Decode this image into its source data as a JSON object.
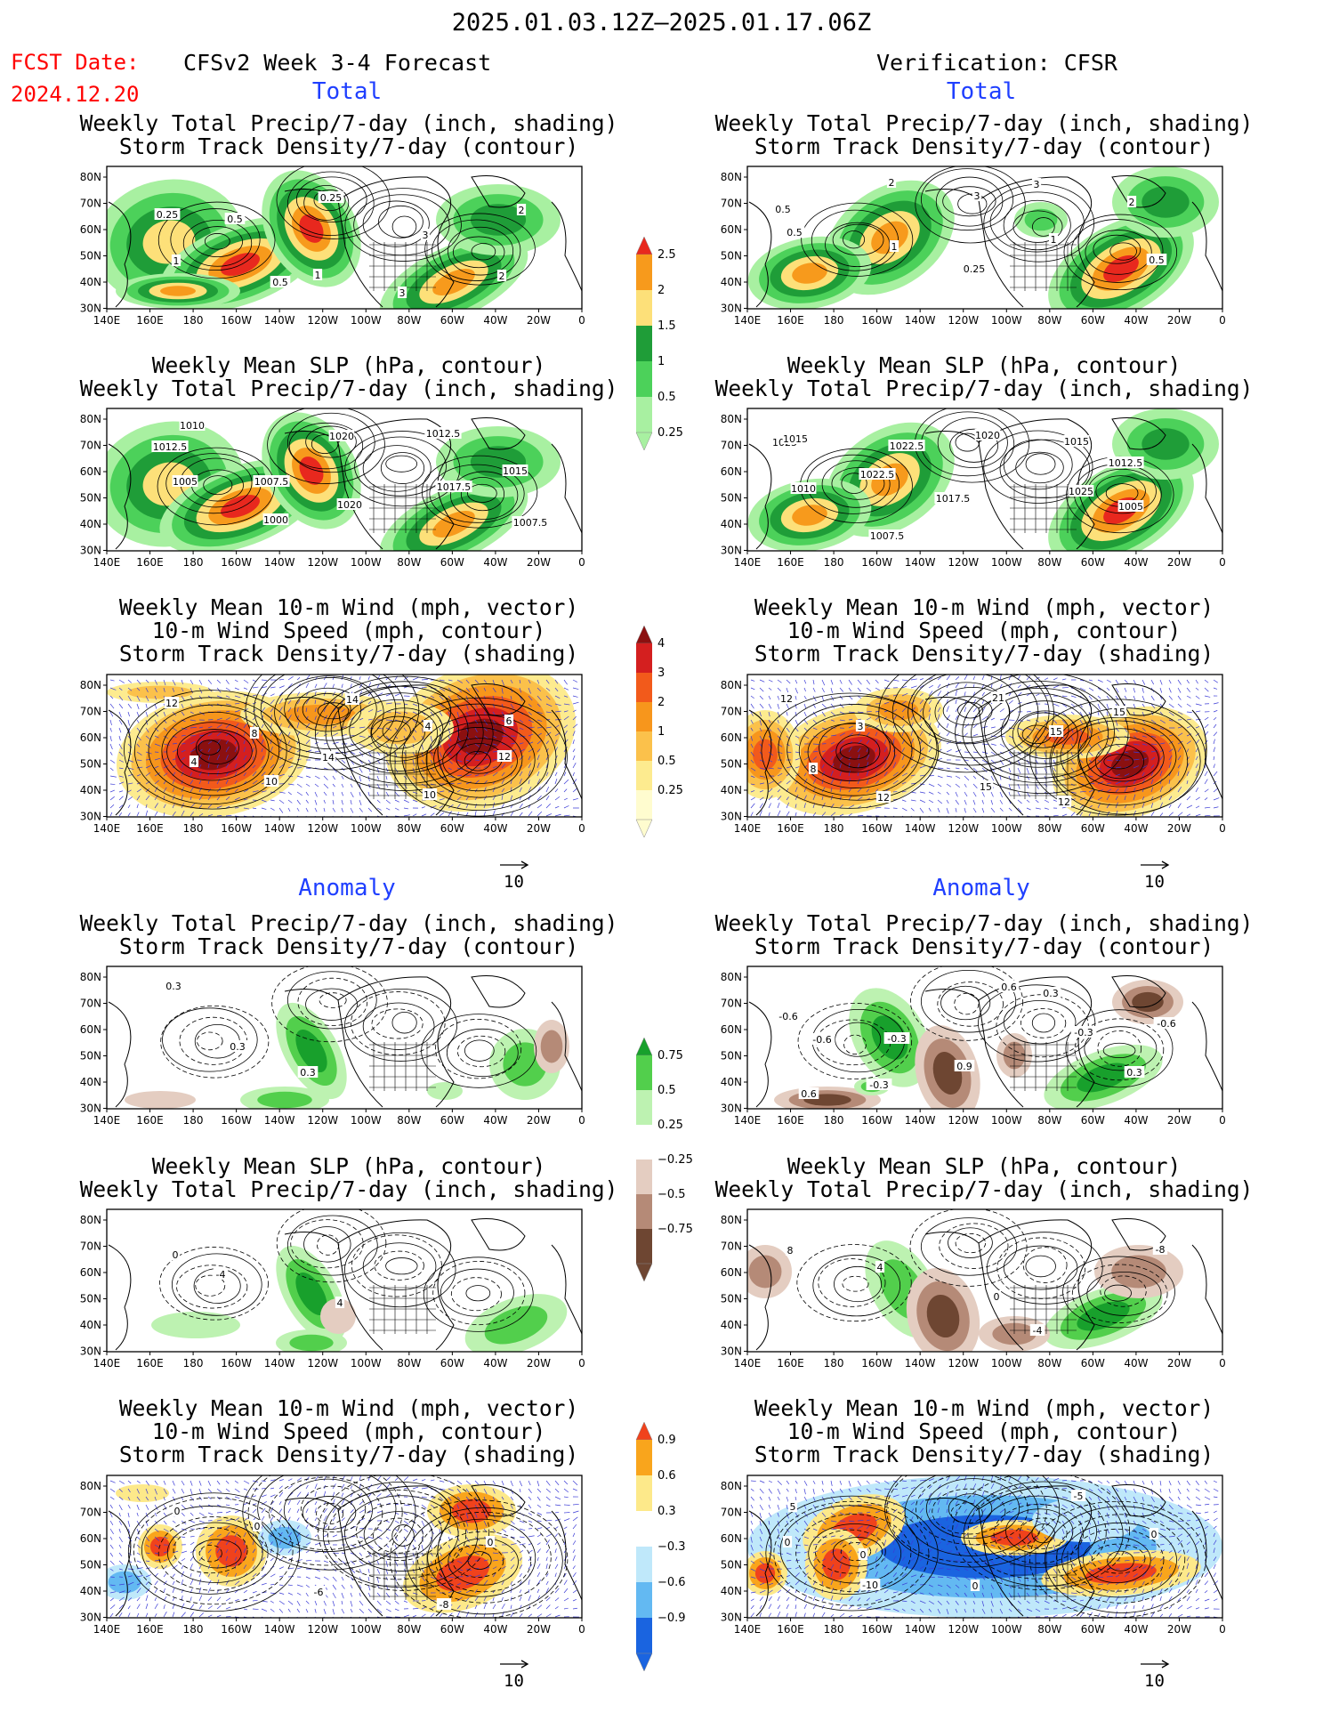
{
  "header": {
    "period": "2025.01.03.12Z–2025.01.17.06Z",
    "fcst_date_label": "FCST Date:",
    "fcst_date_value": "2024.12.20",
    "left_model": "CFSv2 Week 3-4 Forecast",
    "right_model": "Verification: CFSR"
  },
  "sections": {
    "total": "Total",
    "anomaly": "Anomaly"
  },
  "titles": {
    "precip_track": [
      "Weekly Total Precip/7-day (inch, shading)",
      "Storm Track Density/7-day (contour)"
    ],
    "slp_precip": [
      "Weekly Mean SLP (hPa, contour)",
      "Weekly Total Precip/7-day (inch, shading)"
    ],
    "wind_track": [
      "Weekly Mean 10-m Wind (mph, vector)",
      "10-m Wind Speed (mph, contour)",
      "Storm Track Density/7-day (shading)"
    ]
  },
  "axes": {
    "lon_ticks": [
      "140E",
      "160E",
      "180",
      "160W",
      "140W",
      "120W",
      "100W",
      "80W",
      "60W",
      "40W",
      "20W",
      "0"
    ],
    "lat_ticks": [
      "80N",
      "70N",
      "60N",
      "50N",
      "40N",
      "30N"
    ]
  },
  "vector_reference": "10",
  "colorbars": {
    "precip_total": {
      "labels": [
        "2.5",
        "2",
        "1.5",
        "1",
        "0.5",
        "0.25"
      ],
      "colors": [
        "#e8281e",
        "#f79a1c",
        "#fde079",
        "#1f9d38",
        "#4cd15a",
        "#a8f0a1"
      ]
    },
    "track_total": {
      "labels": [
        "4",
        "3",
        "2",
        "1",
        "0.5",
        "0.25"
      ],
      "colors": [
        "#8b1010",
        "#d41f1f",
        "#f25a1b",
        "#f7961c",
        "#fbc14b",
        "#fdeb8f",
        "#fffccf"
      ]
    },
    "precip_anom": {
      "labels": [
        "0.75",
        "0.5",
        "0.25",
        "−0.25",
        "−0.5",
        "−0.75"
      ],
      "colors": [
        "#18a02c",
        "#52cf4c",
        "#bdf2b1",
        "#ffffff",
        "#e4cdc1",
        "#b58a77",
        "#6e4632"
      ]
    },
    "track_anom": {
      "labels": [
        "0.9",
        "0.6",
        "0.3",
        "−0.3",
        "−0.6",
        "−0.9"
      ],
      "colors": [
        "#f0421c",
        "#f9a51c",
        "#fde98a",
        "#ffffff",
        "#bfe8fa",
        "#63b9f2",
        "#1a64e0"
      ]
    }
  },
  "panels": [
    {
      "id": "tl1",
      "labels": [
        "0.25",
        "0.5",
        "1",
        "3",
        "2",
        "1",
        "0.5",
        "0.25",
        "3",
        "2"
      ]
    },
    {
      "id": "tr1",
      "labels": [
        "0.5",
        "1",
        "0.25",
        "3",
        "2",
        "0.5",
        "2",
        "3",
        "1",
        "0.5"
      ]
    },
    {
      "id": "tl2",
      "labels": [
        "1012.5",
        "1007.5",
        "1020",
        "1012.5",
        "1015",
        "1005",
        "1000",
        "1020",
        "1017.5",
        "1007.5",
        "1010"
      ]
    },
    {
      "id": "tr2",
      "labels": [
        "1025",
        "1022.5",
        "1017.5",
        "1015",
        "1012.5",
        "1010",
        "1007.5",
        "1020",
        "1025",
        "1005",
        "1015",
        "1022.5"
      ]
    },
    {
      "id": "tl3",
      "labels": [
        "12",
        "8",
        "14",
        "10",
        "6",
        "4",
        "10",
        "14",
        "4",
        "12"
      ]
    },
    {
      "id": "tr3",
      "labels": [
        "12",
        "3",
        "15",
        "12",
        "15",
        "8",
        "12",
        "21",
        "15"
      ]
    },
    {
      "id": "al1",
      "labels": [
        "0.3",
        "0.3",
        "0.3"
      ]
    },
    {
      "id": "ar1",
      "labels": [
        "-0.6",
        "-0.3",
        "0.9",
        "0.3",
        "-0.6",
        "-0.6",
        "-0.3",
        "0.6",
        "-0.3",
        "0.3",
        "0.6"
      ]
    },
    {
      "id": "al2",
      "labels": [
        "0",
        "-4",
        "4"
      ]
    },
    {
      "id": "ar2",
      "labels": [
        "8",
        "4",
        "0",
        "-4",
        "-8"
      ]
    },
    {
      "id": "al3",
      "labels": [
        "0",
        "0",
        "-6",
        "-8",
        "0"
      ]
    },
    {
      "id": "ar3",
      "labels": [
        "5",
        "0",
        "0",
        "-5",
        "0",
        "0",
        "-10"
      ]
    }
  ]
}
